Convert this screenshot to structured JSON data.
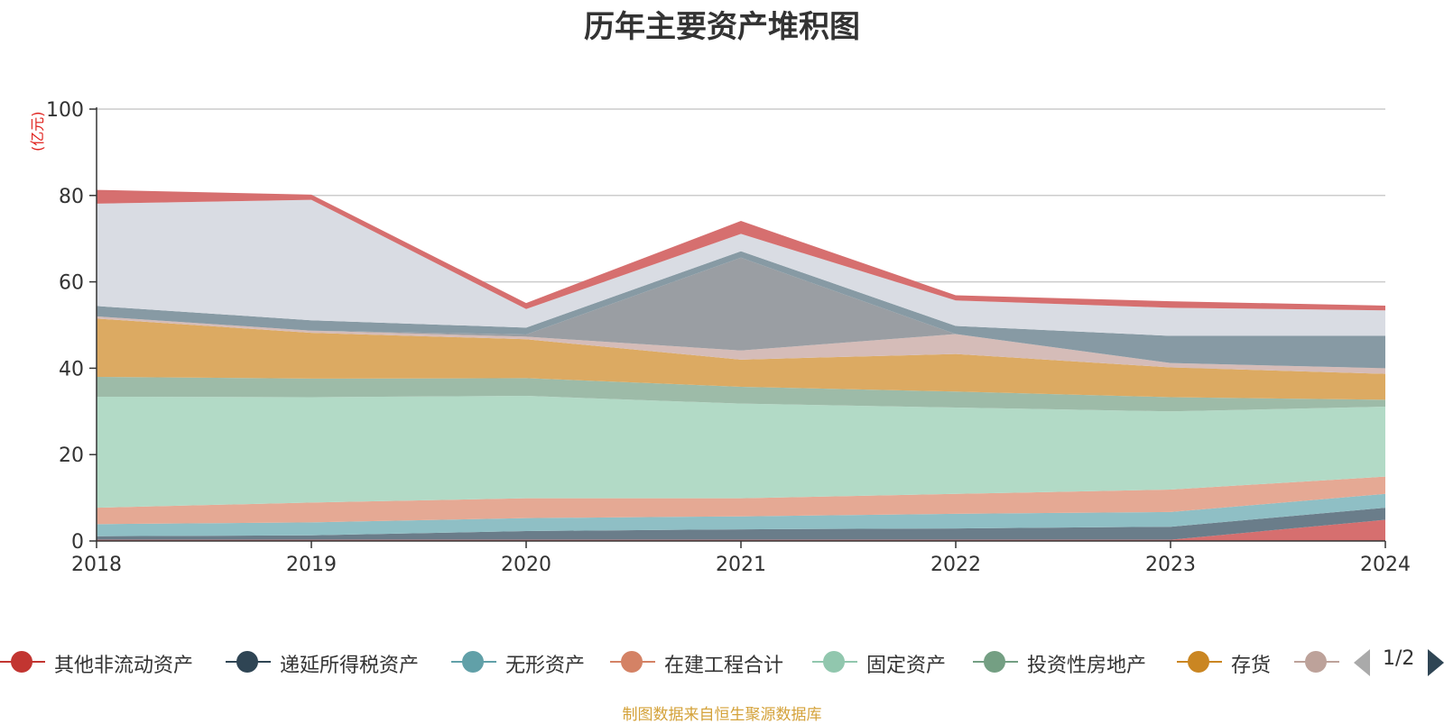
{
  "chart_data": {
    "type": "area",
    "title": "历年主要资产堆积图",
    "ylabel": "(亿元)",
    "xlabel": "",
    "x": [
      "2018",
      "2019",
      "2020",
      "2021",
      "2022",
      "2023",
      "2024"
    ],
    "ylim": [
      0,
      100
    ],
    "yticks": [
      "0",
      "20",
      "40",
      "60",
      "80",
      "100"
    ],
    "stacked": true,
    "grid": true,
    "legend_position": "bottom",
    "series": [
      {
        "name": "其他非流动资产",
        "color": "#d66f6f",
        "values": [
          0.3,
          0.3,
          0.3,
          0.3,
          0.3,
          0.3,
          4.9
        ]
      },
      {
        "name": "递延所得税资产",
        "color": "#6a7d8a",
        "values": [
          0.8,
          1.0,
          2.0,
          2.4,
          2.6,
          3.0,
          2.8
        ]
      },
      {
        "name": "无形资产",
        "color": "#8fbfc5",
        "values": [
          2.8,
          3.0,
          3.0,
          3.0,
          3.4,
          3.4,
          3.2
        ]
      },
      {
        "name": "在建工程合计",
        "color": "#e5a994",
        "values": [
          3.8,
          4.6,
          4.6,
          4.2,
          4.6,
          5.2,
          4.0
        ]
      },
      {
        "name": "固定资产",
        "color": "#b2dac6",
        "values": [
          25.7,
          24.4,
          23.7,
          21.9,
          20.0,
          18.1,
          16.2
        ]
      },
      {
        "name": "投资性房地产",
        "color": "#9dbba8",
        "values": [
          4.6,
          4.3,
          4.1,
          3.9,
          3.7,
          3.3,
          1.6
        ]
      },
      {
        "name": "存货",
        "color": "#dcaa62",
        "values": [
          13.5,
          10.6,
          9.0,
          6.3,
          8.7,
          6.9,
          6.0
        ]
      },
      {
        "name": "",
        "color": "#d5bcb8",
        "values": [
          0.5,
          0.5,
          0.6,
          2.1,
          4.6,
          1.0,
          1.3
        ]
      },
      {
        "name": "",
        "color": "#9a9ea3",
        "values": [
          0.0,
          0.0,
          0.5,
          21.5,
          0.0,
          0.0,
          0.0
        ]
      },
      {
        "name": "",
        "color": "#879aa4",
        "values": [
          2.4,
          2.4,
          1.6,
          1.5,
          1.9,
          6.3,
          7.5
        ]
      },
      {
        "name": "",
        "color": "#d9dce3",
        "values": [
          23.7,
          27.9,
          4.3,
          4.0,
          5.9,
          6.5,
          5.9
        ]
      },
      {
        "name": "",
        "color": "#d66f6f",
        "values": [
          3.2,
          1.2,
          1.4,
          3.0,
          1.2,
          1.5,
          1.1
        ]
      }
    ]
  },
  "legend": {
    "items": [
      {
        "label": "其他非流动资产",
        "color": "#c23531"
      },
      {
        "label": "递延所得税资产",
        "color": "#2f4554"
      },
      {
        "label": "无形资产",
        "color": "#61a0a8"
      },
      {
        "label": "在建工程合计",
        "color": "#d48265"
      },
      {
        "label": "固定资产",
        "color": "#91c7ae"
      },
      {
        "label": "投资性房地产",
        "color": "#749f83"
      },
      {
        "label": "存货",
        "color": "#ca8622"
      },
      {
        "label": "",
        "color": "#bda29a"
      }
    ],
    "page": "1/2"
  },
  "footer": {
    "source": "制图数据来自恒生聚源数据库"
  }
}
